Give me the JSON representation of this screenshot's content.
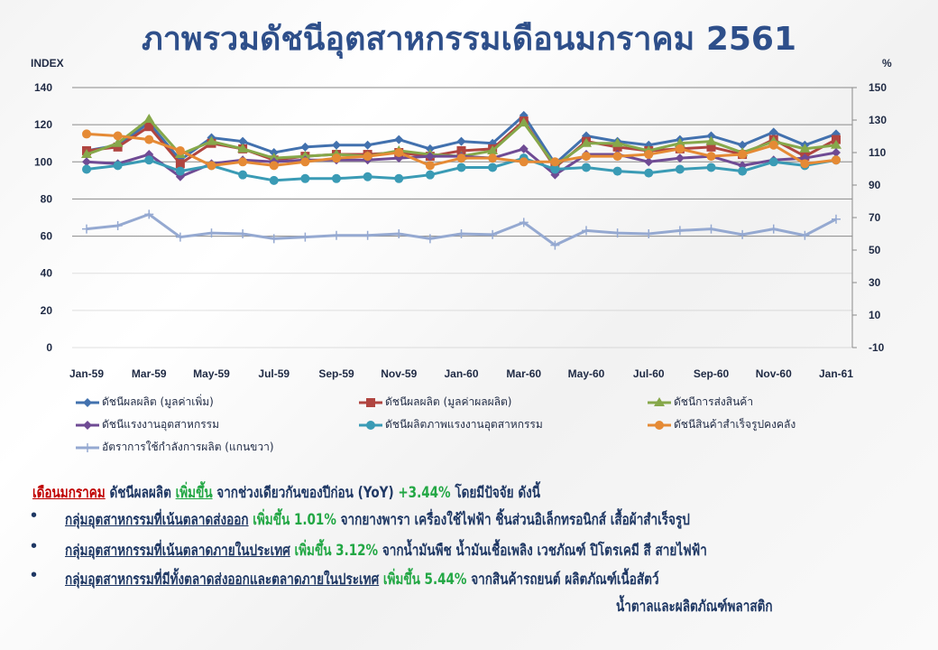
{
  "title": "ภาพรวมดัชนีอุตสาหกรรมเดือนมกราคม 2561",
  "chart_data": {
    "type": "line",
    "left_axis_label": "INDEX",
    "right_axis_label": "%",
    "ylim_left": [
      0,
      140
    ],
    "ylim_right": [
      -10,
      150
    ],
    "left_ticks": [
      "0",
      "20",
      "40",
      "60",
      "80",
      "100",
      "120",
      "140"
    ],
    "right_ticks": [
      "-10",
      "10",
      "30",
      "50",
      "70",
      "90",
      "110",
      "130",
      "150"
    ],
    "x": [
      "Jan-59",
      "Feb-59",
      "Mar-59",
      "Apr-59",
      "May-59",
      "Jun-59",
      "Jul-59",
      "Aug-59",
      "Sep-59",
      "Oct-59",
      "Nov-59",
      "Dec-59",
      "Jan-60",
      "Feb-60",
      "Mar-60",
      "Apr-60",
      "May-60",
      "Jun-60",
      "Jul-60",
      "Aug-60",
      "Sep-60",
      "Oct-60",
      "Nov-60",
      "Dec-60",
      "Jan-61"
    ],
    "x_tick_labels": [
      "Jan-59",
      "Mar-59",
      "May-59",
      "Jul-59",
      "Sep-59",
      "Nov-59",
      "Jan-60",
      "Mar-60",
      "May-60",
      "Jul-60",
      "Sep-60",
      "Nov-60",
      "Jan-61"
    ],
    "grid": true,
    "legend_position": "bottom",
    "series": [
      {
        "name": "ดัชนีผลผลิต (มูลค่าเพิ่ม)",
        "color": "#4271ae",
        "marker": "diamond",
        "axis": "left",
        "values": [
          106,
          109,
          121,
          101,
          113,
          111,
          105,
          108,
          109,
          109,
          112,
          107,
          111,
          110,
          125,
          99,
          114,
          111,
          109,
          112,
          114,
          109,
          116,
          109,
          115
        ]
      },
      {
        "name": "ดัชนีผลผลิต (มูลค่าผลผลิต)",
        "color": "#b04540",
        "marker": "square",
        "axis": "left",
        "values": [
          106,
          108,
          119,
          99,
          110,
          107,
          101,
          103,
          104,
          104,
          105,
          103,
          106,
          107,
          122,
          97,
          111,
          108,
          106,
          107,
          108,
          104,
          112,
          103,
          112
        ]
      },
      {
        "name": "ดัชนีการส่งสินค้า",
        "color": "#86a84a",
        "marker": "triangle",
        "axis": "left",
        "values": [
          104,
          110,
          123,
          104,
          111,
          107,
          102,
          103,
          104,
          103,
          106,
          104,
          103,
          106,
          121,
          98,
          110,
          110,
          106,
          110,
          111,
          105,
          111,
          107,
          109
        ]
      },
      {
        "name": "ดัชนีแรงงานอุตสาหกรรม",
        "color": "#6f4b94",
        "marker": "diamond",
        "axis": "left",
        "values": [
          100,
          99,
          104,
          92,
          99,
          101,
          100,
          101,
          101,
          101,
          102,
          103,
          103,
          102,
          107,
          93,
          104,
          104,
          100,
          102,
          103,
          98,
          101,
          102,
          105
        ]
      },
      {
        "name": "ดัชนีผลิตภาพแรงงานอุตสาหกรรม",
        "color": "#3a9bb5",
        "marker": "circle",
        "axis": "left",
        "values": [
          96,
          98,
          101,
          95,
          98,
          93,
          90,
          91,
          91,
          92,
          91,
          93,
          97,
          97,
          102,
          96,
          97,
          95,
          94,
          96,
          97,
          95,
          100,
          98,
          101
        ]
      },
      {
        "name": "ดัชนีสินค้าสำเร็จรูปคงคลัง",
        "color": "#e58a35",
        "marker": "circle",
        "axis": "left",
        "values": [
          115,
          114,
          112,
          106,
          98,
          100,
          98,
          100,
          102,
          103,
          105,
          98,
          102,
          102,
          100,
          100,
          103,
          103,
          104,
          107,
          103,
          104,
          109,
          99,
          101
        ]
      },
      {
        "name": "อัตราการใช้กำลังการผลิต (แกนขวา)",
        "color": "#95a9d1",
        "marker": "plus",
        "axis": "right",
        "values": [
          63,
          65,
          72,
          58,
          60.5,
          60,
          57,
          58,
          59,
          59,
          60,
          57,
          60,
          59.5,
          67,
          53,
          62,
          60.5,
          60,
          62,
          63,
          59.5,
          63,
          59,
          69
        ]
      }
    ]
  },
  "summary": {
    "month": "เดือนมกราคม",
    "text1": " ดัชนีผลผลิต ",
    "increase": "เพิ่มขึ้น",
    "text2": " จากช่วงเดียวกันของปีก่อน (YoY) ",
    "yoy": "+3.44%",
    "text3": " โดยมีปัจจัย ดังนี้"
  },
  "bullets": [
    {
      "group": "กลุ่มอุตสาหกรรมที่เน้นตลาดส่งออก",
      "change": "เพิ่มขึ้น 1.01%",
      "detail": " จากยางพารา เครื่องใช้ไฟฟ้า ชิ้นส่วนอิเล็กทรอนิกส์ เสื้อผ้าสำเร็จรูป"
    },
    {
      "group": "กลุ่มอุตสาหกรรมที่เน้นตลาดภายในประเทศ",
      "change": "เพิ่มขึ้น 3.12%",
      "detail": " จากน้ำมันพืช น้ำมันเชื้อเพลิง เวชภัณฑ์ ปิโตรเคมี สี สายไฟฟ้า"
    },
    {
      "group": "กลุ่มอุตสาหกรรมที่มีทั้งตลาดส่งออกและตลาดภายในประเทศ",
      "change": "เพิ่มขึ้น 5.44%",
      "detail": " จากสินค้ารถยนต์ ผลิตภัณฑ์เนื้อสัตว์",
      "detail2": "น้ำตาลและผลิตภัณฑ์พลาสติก"
    }
  ]
}
